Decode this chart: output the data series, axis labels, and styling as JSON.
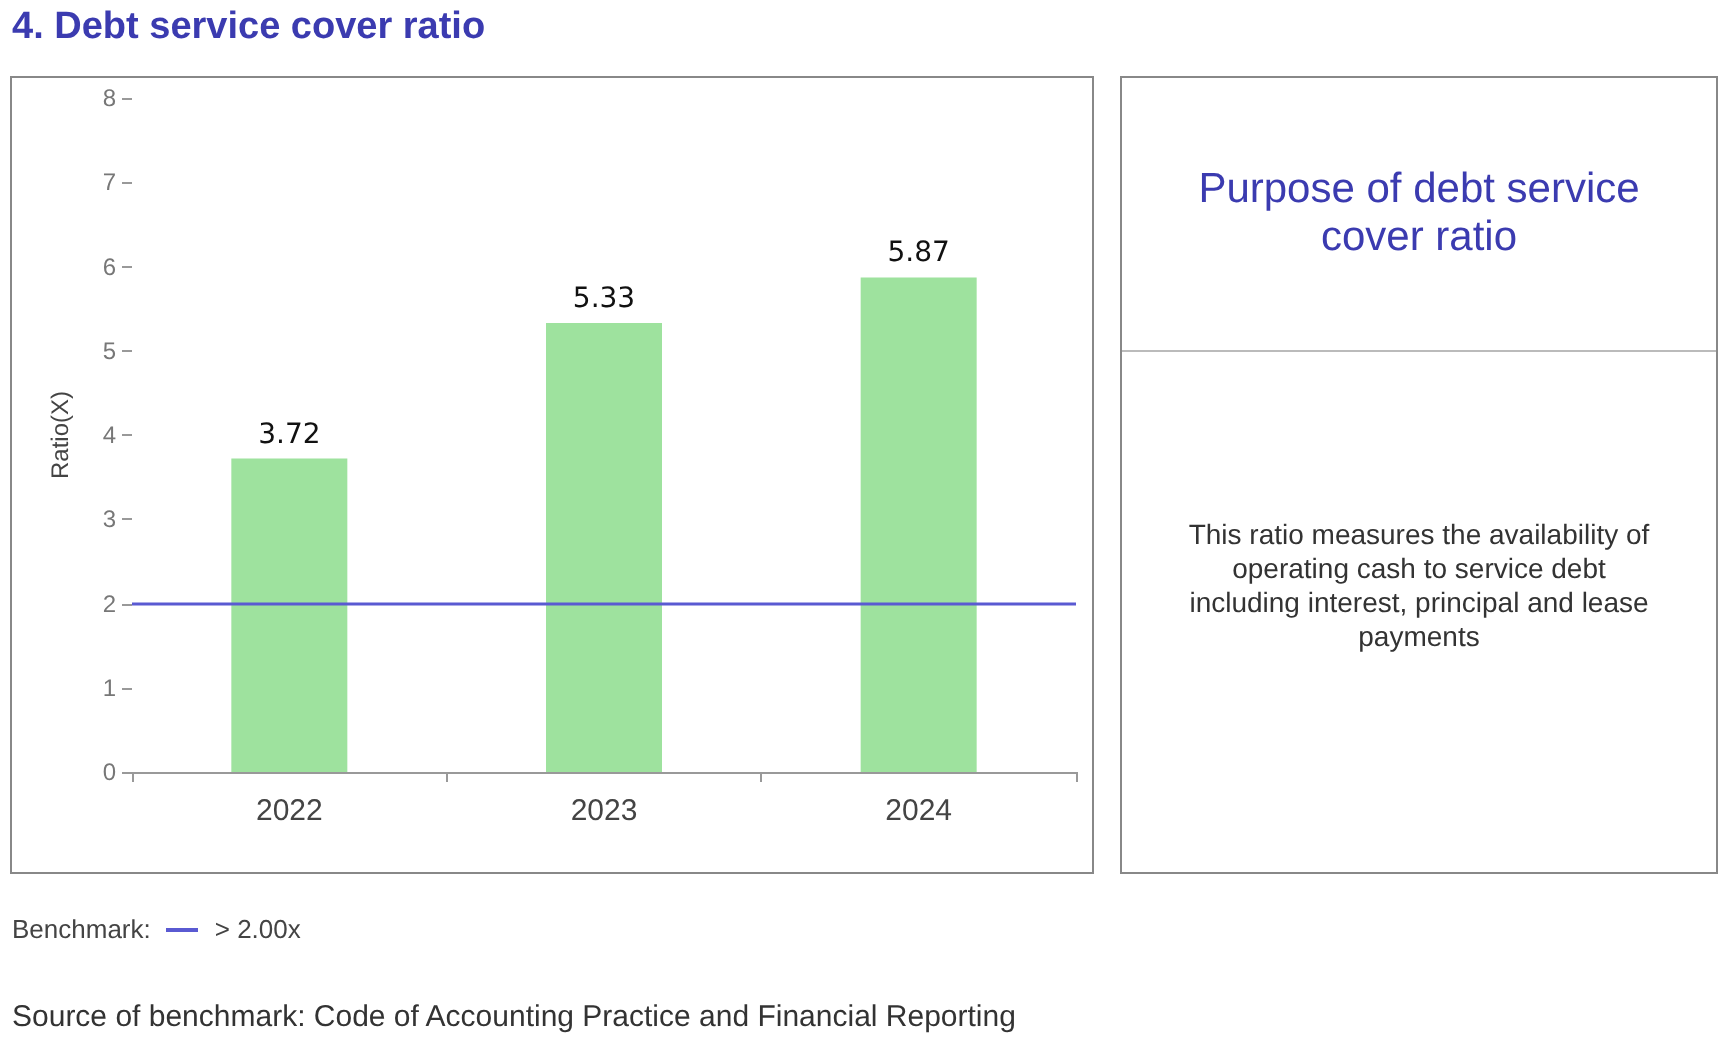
{
  "chart_data": {
    "type": "bar",
    "title": "4. Debt service cover ratio",
    "ylabel": "Ratio(X)",
    "categories": [
      "2022",
      "2023",
      "2024"
    ],
    "values": [
      3.72,
      5.33,
      5.87
    ],
    "color": "#9ee29e",
    "ylim": [
      0,
      8
    ],
    "yticks": [
      0,
      1,
      2,
      3,
      4,
      5,
      6,
      7,
      8
    ],
    "grid": false,
    "data_labels": true,
    "ref_lines": [
      {
        "axis": "y",
        "value": 2,
        "label": "> 2.00x",
        "color": "#5a5ad2"
      }
    ],
    "annotations": [
      "Purpose of debt service cover ratio",
      "This ratio measures the availability of operating cash to service debt including interest, principal and lease payments",
      "Benchmark:",
      "Source of benchmark: Code of Accounting Practice and Financial Reporting"
    ]
  }
}
